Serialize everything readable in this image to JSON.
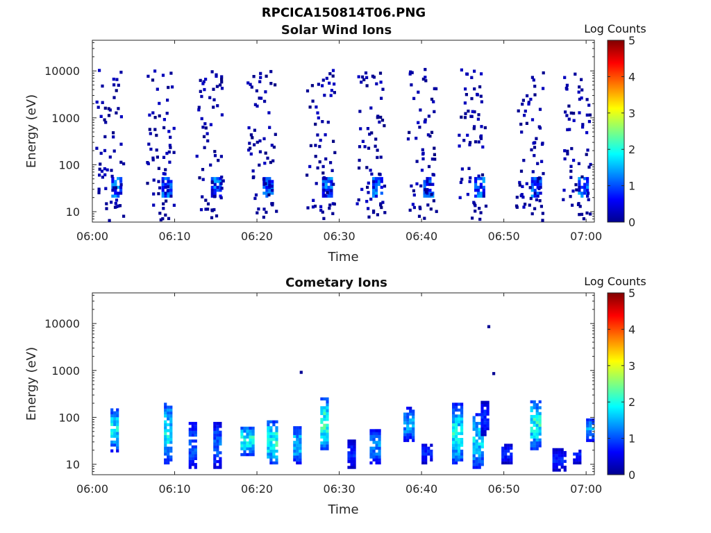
{
  "figure": {
    "title": "RPCICA150814T06.PNG"
  },
  "chart_data": [
    {
      "type": "heatmap",
      "title": "Solar Wind Ions",
      "xlabel": "Time",
      "ylabel": "Energy (eV)",
      "y_scale": "log",
      "ylim": [
        6,
        45000
      ],
      "xlim": [
        "06:00",
        "07:01"
      ],
      "x_ticks": [
        "06:00",
        "06:10",
        "06:20",
        "06:30",
        "06:40",
        "06:50",
        "07:00"
      ],
      "y_ticks": [
        "10",
        "100",
        "1000",
        "10000"
      ],
      "colorbar": {
        "label": "Log Counts",
        "min": 0,
        "max": 5,
        "ticks": [
          "0",
          "1",
          "2",
          "3",
          "4",
          "5"
        ],
        "colormap": "jet"
      },
      "sweep_minutes": [
        2.9,
        9.0,
        15.0,
        21.3,
        28.5,
        34.6,
        40.8,
        47.0,
        53.9,
        59.6
      ],
      "dense_band_eV": [
        20,
        50
      ],
      "max_log_counts": 1.3,
      "scatter_range_eV": [
        10,
        10000
      ]
    },
    {
      "type": "heatmap",
      "title": "Cometary Ions",
      "xlabel": "Time",
      "ylabel": "Energy (eV)",
      "y_scale": "log",
      "ylim": [
        6,
        45000
      ],
      "xlim": [
        "06:00",
        "07:01"
      ],
      "x_ticks": [
        "06:00",
        "06:10",
        "06:20",
        "06:30",
        "06:40",
        "06:50",
        "07:00"
      ],
      "y_ticks": [
        "10",
        "100",
        "1000",
        "10000"
      ],
      "colorbar": {
        "label": "Log Counts",
        "min": 0,
        "max": 5,
        "ticks": [
          "0",
          "1",
          "2",
          "3",
          "4",
          "5"
        ],
        "colormap": "jet"
      },
      "bursts": [
        {
          "minute": 3.0,
          "e_low": 18,
          "e_high": 150,
          "peak": 2.2
        },
        {
          "minute": 9.5,
          "e_low": 10,
          "e_high": 200,
          "peak": 2.2
        },
        {
          "minute": 12.5,
          "e_low": 8,
          "e_high": 80,
          "peak": 1.3
        },
        {
          "minute": 15.5,
          "e_low": 8,
          "e_high": 70,
          "peak": 1.4
        },
        {
          "minute": 18.8,
          "e_low": 15,
          "e_high": 60,
          "peak": 2.4
        },
        {
          "minute": 22.0,
          "e_low": 10,
          "e_high": 80,
          "peak": 2.5
        },
        {
          "minute": 25.2,
          "e_low": 10,
          "e_high": 60,
          "peak": 2.0
        },
        {
          "minute": 28.5,
          "e_low": 20,
          "e_high": 250,
          "peak": 2.6
        },
        {
          "minute": 31.8,
          "e_low": 8,
          "e_high": 30,
          "peak": 1.0
        },
        {
          "minute": 34.5,
          "e_low": 10,
          "e_high": 50,
          "peak": 1.6
        },
        {
          "minute": 38.6,
          "e_low": 30,
          "e_high": 150,
          "peak": 1.7
        },
        {
          "minute": 40.8,
          "e_low": 10,
          "e_high": 25,
          "peak": 1.0
        },
        {
          "minute": 44.5,
          "e_low": 10,
          "e_high": 180,
          "peak": 2.3
        },
        {
          "minute": 47.0,
          "e_low": 8,
          "e_high": 120,
          "peak": 2.0
        },
        {
          "minute": 48.0,
          "e_low": 40,
          "e_high": 200,
          "peak": 1.0
        },
        {
          "minute": 50.5,
          "e_low": 10,
          "e_high": 25,
          "peak": 1.0
        },
        {
          "minute": 54.0,
          "e_low": 20,
          "e_high": 220,
          "peak": 2.4
        },
        {
          "minute": 56.7,
          "e_low": 7,
          "e_high": 20,
          "peak": 1.0
        },
        {
          "minute": 59.2,
          "e_low": 10,
          "e_high": 20,
          "peak": 1.0
        },
        {
          "minute": 60.8,
          "e_low": 30,
          "e_high": 90,
          "peak": 1.8
        }
      ],
      "isolated_points": [
        {
          "minute": 48.0,
          "energy": 8000
        },
        {
          "minute": 25.2,
          "energy": 850
        },
        {
          "minute": 48.6,
          "energy": 800
        }
      ]
    }
  ]
}
